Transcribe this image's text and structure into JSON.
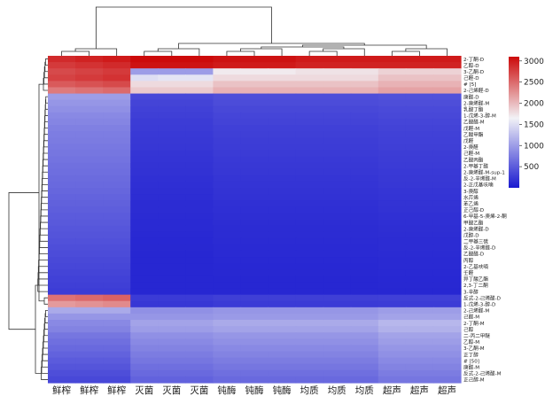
{
  "chart_data": {
    "type": "heatmap",
    "title": "",
    "xlabel": "",
    "ylabel": "",
    "columns": [
      "鲜榨",
      "鲜榨",
      "鲜榨",
      "灭菌",
      "灭菌",
      "灭菌",
      "钝酶",
      "钝酶",
      "钝酶",
      "均质",
      "均质",
      "均质",
      "超声",
      "超声",
      "超声"
    ],
    "rows": [
      "2-丁酮-D",
      "乙醇-D",
      "3-乙酮-D",
      "己醛-D",
      "# [5]",
      "2-己烯醛-D",
      "庚醛-D",
      "2-庚烯醛-M",
      "乳酸丁酯",
      "1-戊烯-3-醇-M",
      "乙酸醛-M",
      "戊醛-M",
      "乙酸甲酯",
      "戊醛",
      "2-庚醛",
      "己醛-M",
      "乙酸丙酯",
      "2-甲基丁醛",
      "2-庚烯醛-M-sup-1",
      "反-2-辛烯醛-M",
      "2-正戊基呋喃",
      "3-庚醇",
      "水芹烯",
      "苯乙烯",
      "正己醇-D",
      "6-甲基-5-庚烯-2-酮",
      "甲酸乙酯",
      "2-庚烯醛-D",
      "戊醇-D",
      "二甲基三硫",
      "反-2-辛烯醛-D",
      "乙酸醛-D",
      "丙醇",
      "2-乙基呋喃",
      "壬醛",
      "异丁酸乙酯",
      "2,3-丁二酮",
      "3-辛醇",
      "反式-2-己烯醛-D",
      "1-戊烯-3-醇-D",
      "2-己烯醛-M",
      "己醛-M",
      "2-丁酮-M",
      "己醇",
      "二-丙二甲醚",
      "乙醇-M",
      "3-乙酮-M",
      "正丁醇",
      "# [50]",
      "庚醛-M",
      "反式-2-己烯醛-M",
      "正己醇-M"
    ],
    "values": [
      [
        2900,
        2950,
        3000,
        3100,
        3100,
        3100,
        3050,
        3050,
        3050,
        3000,
        3000,
        3000,
        3000,
        3000,
        3000
      ],
      [
        2800,
        2850,
        2900,
        3050,
        3050,
        3050,
        3000,
        3000,
        3000,
        2950,
        2950,
        2950,
        2950,
        2950,
        2950
      ],
      [
        2700,
        2750,
        2800,
        1000,
        1000,
        1000,
        1700,
        1700,
        1700,
        1750,
        1750,
        1750,
        1850,
        1850,
        1850
      ],
      [
        2750,
        2800,
        2850,
        1500,
        1550,
        1550,
        1800,
        1800,
        1800,
        1800,
        1800,
        1800,
        1950,
        1950,
        1950
      ],
      [
        2600,
        2650,
        2700,
        1800,
        1800,
        1800,
        1950,
        1950,
        1950,
        1950,
        1950,
        1950,
        2050,
        2050,
        2050
      ],
      [
        2400,
        2450,
        2500,
        1900,
        1900,
        1900,
        2050,
        2050,
        2050,
        2050,
        2050,
        2050,
        2150,
        2150,
        2150
      ],
      [
        1000,
        1000,
        1000,
        350,
        350,
        350,
        400,
        400,
        400,
        400,
        400,
        400,
        420,
        420,
        420
      ],
      [
        950,
        950,
        950,
        320,
        320,
        320,
        380,
        380,
        380,
        380,
        380,
        380,
        400,
        400,
        400
      ],
      [
        900,
        900,
        900,
        300,
        300,
        300,
        350,
        350,
        350,
        350,
        350,
        350,
        370,
        370,
        370
      ],
      [
        850,
        850,
        850,
        280,
        280,
        280,
        330,
        330,
        330,
        330,
        330,
        330,
        350,
        350,
        350
      ],
      [
        820,
        820,
        820,
        260,
        260,
        260,
        310,
        310,
        310,
        310,
        310,
        310,
        330,
        330,
        330
      ],
      [
        780,
        780,
        780,
        250,
        250,
        250,
        290,
        290,
        290,
        290,
        290,
        290,
        310,
        310,
        310
      ],
      [
        760,
        760,
        760,
        240,
        240,
        240,
        280,
        280,
        280,
        280,
        280,
        280,
        300,
        300,
        300
      ],
      [
        740,
        740,
        740,
        230,
        230,
        230,
        270,
        270,
        270,
        270,
        270,
        270,
        290,
        290,
        290
      ],
      [
        720,
        720,
        720,
        220,
        220,
        220,
        260,
        260,
        260,
        260,
        260,
        260,
        280,
        280,
        280
      ],
      [
        700,
        700,
        700,
        210,
        210,
        210,
        250,
        250,
        250,
        250,
        250,
        250,
        270,
        270,
        270
      ],
      [
        680,
        680,
        680,
        200,
        200,
        200,
        240,
        240,
        240,
        240,
        240,
        240,
        260,
        260,
        260
      ],
      [
        660,
        660,
        660,
        190,
        190,
        190,
        230,
        230,
        230,
        230,
        230,
        230,
        250,
        250,
        250
      ],
      [
        640,
        640,
        640,
        180,
        180,
        180,
        220,
        220,
        220,
        220,
        220,
        220,
        240,
        240,
        240
      ],
      [
        620,
        620,
        620,
        170,
        170,
        170,
        210,
        210,
        210,
        210,
        210,
        210,
        230,
        230,
        230
      ],
      [
        600,
        600,
        600,
        160,
        160,
        160,
        200,
        200,
        200,
        200,
        200,
        200,
        220,
        220,
        220
      ],
      [
        580,
        580,
        580,
        150,
        150,
        150,
        190,
        190,
        190,
        190,
        190,
        190,
        210,
        210,
        210
      ],
      [
        560,
        560,
        560,
        145,
        145,
        145,
        180,
        180,
        180,
        180,
        180,
        180,
        200,
        200,
        200
      ],
      [
        540,
        540,
        540,
        140,
        140,
        140,
        170,
        170,
        170,
        170,
        170,
        170,
        190,
        190,
        190
      ],
      [
        520,
        520,
        520,
        135,
        135,
        135,
        160,
        160,
        160,
        160,
        160,
        160,
        180,
        180,
        180
      ],
      [
        500,
        500,
        500,
        130,
        130,
        130,
        150,
        150,
        150,
        150,
        150,
        150,
        170,
        170,
        170
      ],
      [
        480,
        480,
        480,
        125,
        125,
        125,
        145,
        145,
        145,
        145,
        145,
        145,
        160,
        160,
        160
      ],
      [
        460,
        460,
        460,
        120,
        120,
        120,
        140,
        140,
        140,
        140,
        140,
        140,
        150,
        150,
        150
      ],
      [
        440,
        440,
        440,
        115,
        115,
        115,
        135,
        135,
        135,
        135,
        135,
        135,
        145,
        145,
        145
      ],
      [
        420,
        420,
        420,
        110,
        110,
        110,
        130,
        130,
        130,
        130,
        130,
        130,
        140,
        140,
        140
      ],
      [
        400,
        400,
        400,
        105,
        105,
        105,
        125,
        125,
        125,
        125,
        125,
        125,
        135,
        135,
        135
      ],
      [
        380,
        380,
        380,
        100,
        100,
        100,
        120,
        120,
        120,
        120,
        120,
        120,
        130,
        130,
        130
      ],
      [
        360,
        360,
        360,
        100,
        100,
        100,
        115,
        115,
        115,
        115,
        115,
        115,
        125,
        125,
        125
      ],
      [
        340,
        340,
        340,
        100,
        100,
        100,
        110,
        110,
        110,
        110,
        110,
        110,
        120,
        120,
        120
      ],
      [
        320,
        320,
        320,
        100,
        100,
        100,
        105,
        105,
        105,
        105,
        105,
        105,
        115,
        115,
        115
      ],
      [
        300,
        300,
        300,
        100,
        100,
        100,
        100,
        100,
        100,
        100,
        100,
        100,
        110,
        110,
        110
      ],
      [
        280,
        280,
        280,
        100,
        100,
        100,
        100,
        100,
        100,
        100,
        100,
        100,
        105,
        105,
        105
      ],
      [
        260,
        260,
        260,
        100,
        100,
        100,
        100,
        100,
        100,
        100,
        100,
        100,
        100,
        100,
        100
      ],
      [
        2450,
        2500,
        2550,
        250,
        250,
        250,
        280,
        280,
        280,
        280,
        280,
        280,
        290,
        290,
        290
      ],
      [
        2200,
        2250,
        2300,
        220,
        220,
        220,
        250,
        250,
        250,
        250,
        250,
        250,
        260,
        260,
        260
      ],
      [
        1100,
        1100,
        1100,
        900,
        900,
        900,
        950,
        950,
        950,
        950,
        950,
        950,
        1000,
        1000,
        1000
      ],
      [
        950,
        950,
        950,
        950,
        950,
        950,
        980,
        980,
        980,
        980,
        980,
        980,
        1050,
        1050,
        1050
      ],
      [
        850,
        850,
        850,
        1050,
        1050,
        1050,
        1100,
        1100,
        1100,
        1100,
        1100,
        1100,
        1200,
        1200,
        1200
      ],
      [
        800,
        800,
        800,
        1000,
        1000,
        1000,
        1050,
        1050,
        1050,
        1050,
        1050,
        1050,
        1150,
        1150,
        1150
      ],
      [
        700,
        700,
        700,
        900,
        900,
        900,
        950,
        950,
        950,
        950,
        950,
        950,
        1050,
        1050,
        1050
      ],
      [
        650,
        650,
        650,
        850,
        850,
        850,
        900,
        900,
        900,
        900,
        900,
        900,
        1000,
        1000,
        1000
      ],
      [
        600,
        600,
        600,
        800,
        800,
        800,
        850,
        850,
        850,
        850,
        850,
        850,
        950,
        950,
        950
      ],
      [
        550,
        550,
        550,
        750,
        750,
        750,
        800,
        800,
        800,
        800,
        800,
        800,
        900,
        900,
        900
      ],
      [
        500,
        500,
        500,
        700,
        700,
        700,
        750,
        750,
        750,
        750,
        750,
        750,
        850,
        850,
        850
      ],
      [
        450,
        450,
        450,
        650,
        650,
        650,
        700,
        700,
        700,
        700,
        700,
        700,
        800,
        800,
        800
      ],
      [
        400,
        400,
        400,
        600,
        600,
        600,
        650,
        650,
        650,
        650,
        650,
        650,
        750,
        750,
        750
      ],
      [
        350,
        350,
        350,
        550,
        550,
        550,
        600,
        600,
        600,
        600,
        600,
        600,
        700,
        700,
        700
      ]
    ],
    "color_scale": {
      "min": 0,
      "max": 3100,
      "ticks": [
        500,
        1000,
        1500,
        2000,
        2500,
        3000
      ],
      "low_color": "#1a1ad0",
      "mid_color": "#f2f2f6",
      "high_color": "#cc0a0a",
      "mid_value": 1650
    },
    "dendrograms": {
      "columns": true,
      "rows": true
    },
    "legend_position": "right",
    "grid": false
  }
}
